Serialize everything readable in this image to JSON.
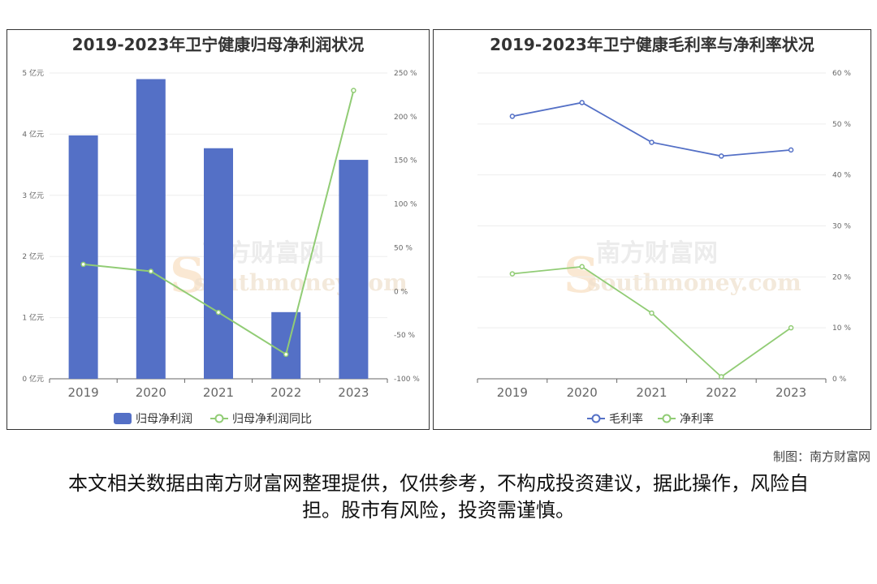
{
  "credit": "制图：南方财富网",
  "disclaimer": "本文相关数据由南方财富网整理提供，仅供参考，不构成投资建议，据此操作，风险自担。股市有风险，投资需谨慎。",
  "watermark": {
    "cn": "南方财富网",
    "en": "southmoney.com"
  },
  "colors": {
    "bar": "#5470c6",
    "line_green": "#91cc75",
    "line_blue": "#5470c6"
  },
  "chart_data": [
    {
      "type": "bar",
      "title": "2019-2023年卫宁健康归母净利润状况",
      "categories": [
        "2019",
        "2020",
        "2021",
        "2022",
        "2023"
      ],
      "series": [
        {
          "name": "归母净利润",
          "type": "bar",
          "axis": "left",
          "values": [
            3.98,
            4.9,
            3.77,
            1.09,
            3.58
          ]
        },
        {
          "name": "归母净利润同比",
          "type": "line",
          "axis": "right",
          "values": [
            31,
            23,
            -24,
            -72,
            230
          ]
        }
      ],
      "y_left": {
        "min": 0,
        "max": 5,
        "ticks": [
          "0 亿元",
          "1 亿元",
          "2 亿元",
          "3 亿元",
          "4 亿元",
          "5 亿元"
        ]
      },
      "y_right": {
        "min": -100,
        "max": 250,
        "ticks": [
          "-100 %",
          "-50 %",
          "0 %",
          "50 %",
          "100 %",
          "150 %",
          "200 %",
          "250 %"
        ]
      },
      "legend": "bottom",
      "grid": true
    },
    {
      "type": "line",
      "title": "2019-2023年卫宁健康毛利率与净利率状况",
      "categories": [
        "2019",
        "2020",
        "2021",
        "2022",
        "2023"
      ],
      "series": [
        {
          "name": "毛利率",
          "values": [
            51.5,
            54.2,
            46.4,
            43.7,
            44.9
          ]
        },
        {
          "name": "净利率",
          "values": [
            20.6,
            22.0,
            12.9,
            0.4,
            10.0
          ]
        }
      ],
      "y_right": {
        "min": 0,
        "max": 60,
        "ticks": [
          "0 %",
          "10 %",
          "20 %",
          "30 %",
          "40 %",
          "50 %",
          "60 %"
        ]
      },
      "legend": "bottom",
      "grid": true
    }
  ]
}
